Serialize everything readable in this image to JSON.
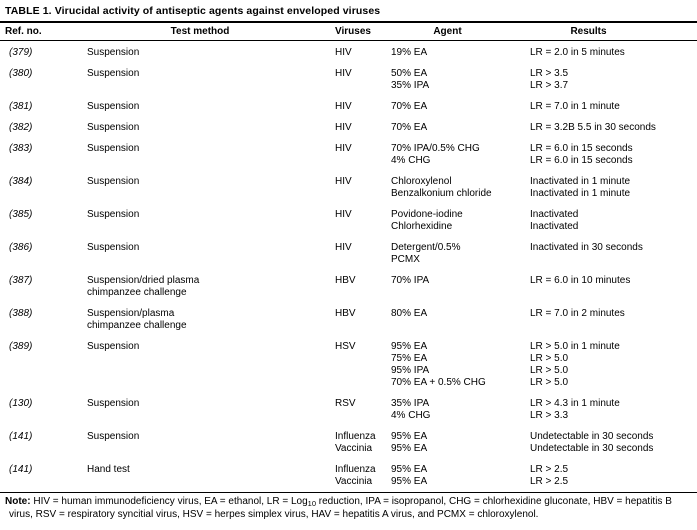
{
  "title": "TABLE 1. Virucidal activity of antiseptic agents against enveloped viruses",
  "columns": [
    "Ref. no.",
    "Test method",
    "Viruses",
    "Agent",
    "Results"
  ],
  "rows": [
    {
      "ref": "(379)",
      "method": [
        "Suspension"
      ],
      "viruses": [
        "HIV"
      ],
      "agents": [
        "19% EA"
      ],
      "results": [
        "LR = 2.0 in 5 minutes"
      ]
    },
    {
      "ref": "(380)",
      "method": [
        "Suspension"
      ],
      "viruses": [
        "HIV"
      ],
      "agents": [
        "50% EA",
        "35% IPA"
      ],
      "results": [
        "LR > 3.5",
        "LR > 3.7"
      ]
    },
    {
      "ref": "(381)",
      "method": [
        "Suspension"
      ],
      "viruses": [
        "HIV"
      ],
      "agents": [
        "70% EA"
      ],
      "results": [
        "LR = 7.0 in 1 minute"
      ]
    },
    {
      "ref": "(382)",
      "method": [
        "Suspension"
      ],
      "viruses": [
        "HIV"
      ],
      "agents": [
        "70% EA"
      ],
      "results": [
        "LR = 3.2B 5.5 in 30 seconds"
      ]
    },
    {
      "ref": "(383)",
      "method": [
        "Suspension"
      ],
      "viruses": [
        "HIV"
      ],
      "agents": [
        "70% IPA/0.5% CHG",
        "4% CHG"
      ],
      "results": [
        "LR = 6.0 in 15 seconds",
        "LR = 6.0 in 15 seconds"
      ]
    },
    {
      "ref": "(384)",
      "method": [
        "Suspension"
      ],
      "viruses": [
        "HIV"
      ],
      "agents": [
        "Chloroxylenol",
        "Benzalkonium chloride"
      ],
      "results": [
        "Inactivated in 1 minute",
        "Inactivated in 1 minute"
      ]
    },
    {
      "ref": "(385)",
      "method": [
        "Suspension"
      ],
      "viruses": [
        "HIV"
      ],
      "agents": [
        "Povidone-iodine",
        "Chlorhexidine"
      ],
      "results": [
        "Inactivated",
        "Inactivated"
      ]
    },
    {
      "ref": "(386)",
      "method": [
        "Suspension"
      ],
      "viruses": [
        "HIV"
      ],
      "agents": [
        "Detergent/0.5%",
        "PCMX"
      ],
      "results": [
        "Inactivated in 30 seconds"
      ]
    },
    {
      "ref": "(387)",
      "method": [
        "Suspension/dried plasma",
        "chimpanzee challenge"
      ],
      "viruses": [
        "HBV"
      ],
      "agents": [
        "70% IPA"
      ],
      "results": [
        "LR = 6.0 in 10 minutes"
      ]
    },
    {
      "ref": "(388)",
      "method": [
        "Suspension/plasma",
        "chimpanzee challenge"
      ],
      "viruses": [
        "HBV"
      ],
      "agents": [
        "80% EA"
      ],
      "results": [
        "LR = 7.0 in 2 minutes"
      ]
    },
    {
      "ref": "(389)",
      "method": [
        "Suspension"
      ],
      "viruses": [
        "HSV"
      ],
      "agents": [
        "95% EA",
        "75% EA",
        "95% IPA",
        "70% EA + 0.5% CHG"
      ],
      "results": [
        "LR > 5.0 in 1 minute",
        "LR > 5.0",
        "LR > 5.0",
        "LR > 5.0"
      ]
    },
    {
      "ref": "(130)",
      "method": [
        "Suspension"
      ],
      "viruses": [
        "RSV"
      ],
      "agents": [
        "35% IPA",
        "4% CHG"
      ],
      "results": [
        "LR > 4.3 in 1 minute",
        "LR > 3.3"
      ]
    },
    {
      "ref": "(141)",
      "method": [
        "Suspension"
      ],
      "viruses": [
        "Influenza",
        "Vaccinia"
      ],
      "agents": [
        "95% EA",
        "95% EA"
      ],
      "results": [
        "Undetectable in 30 seconds",
        "Undetectable in 30 seconds"
      ]
    },
    {
      "ref": "(141)",
      "method": [
        "Hand test"
      ],
      "viruses": [
        "Influenza",
        "Vaccinia"
      ],
      "agents": [
        "95% EA",
        "95% EA"
      ],
      "results": [
        "LR > 2.5",
        "LR > 2.5"
      ]
    }
  ],
  "note": {
    "label": "Note:",
    "text_before_sub": " HIV = human immunodeficiency virus, EA = ethanol, LR = Log",
    "subscript": "10",
    "text_after_sub": " reduction, IPA = isopropanol, CHG = chlorhexidine gluconate, HBV = hepatitis B virus, RSV = respiratory syncitial virus, HSV = herpes simplex virus, HAV = hepatitis A virus, and PCMX = chloroxylenol."
  }
}
